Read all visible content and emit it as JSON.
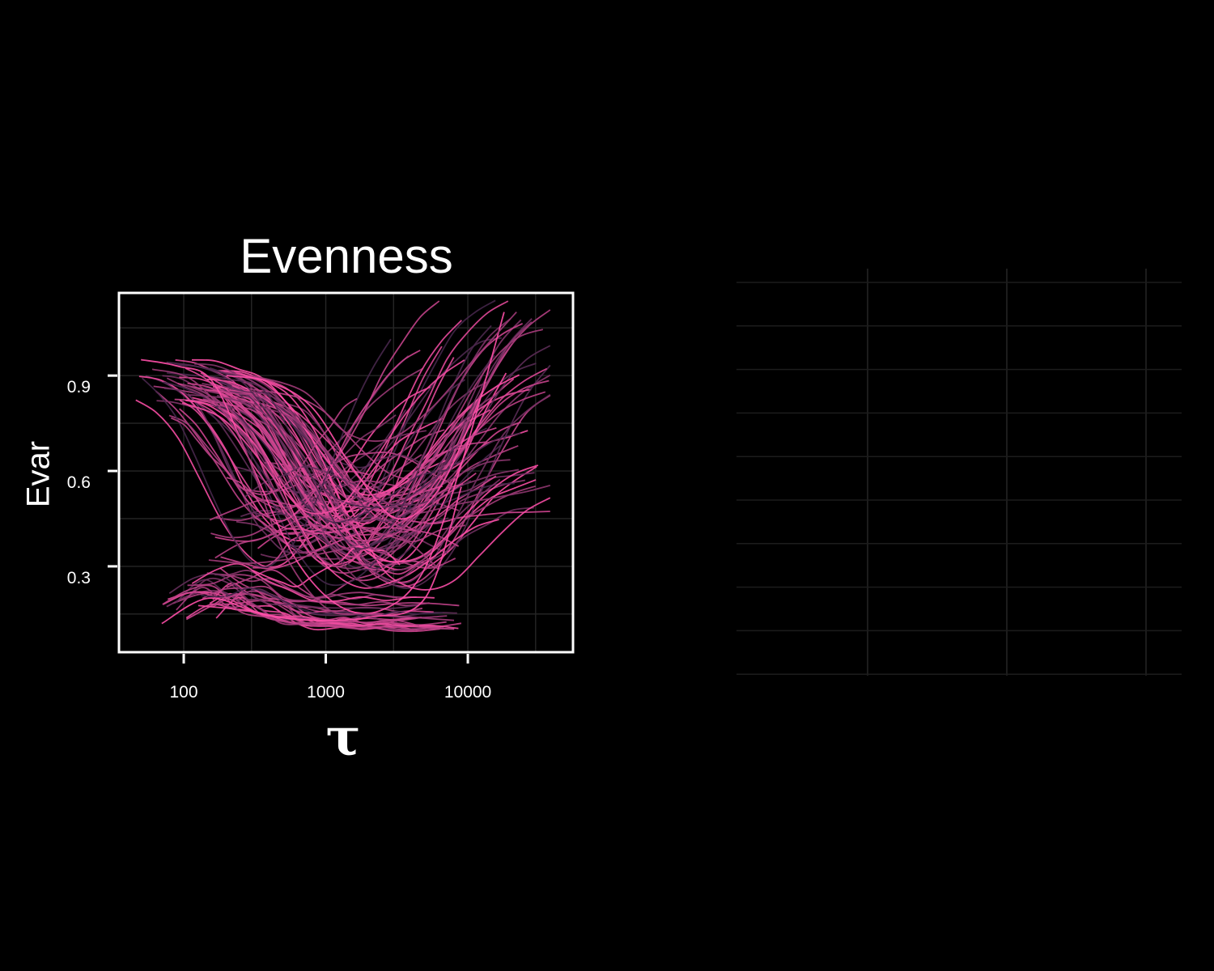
{
  "chart_data": [
    {
      "type": "line",
      "title": "Evenness",
      "xlabel": "τ",
      "ylabel": "Evar",
      "x_scale": "log",
      "xlim": [
        35,
        55000
      ],
      "ylim": [
        0.03,
        1.16
      ],
      "x_ticks": [
        100,
        1000,
        10000
      ],
      "x_tick_labels": [
        "100",
        "1000",
        "10000"
      ],
      "y_ticks": [
        0.3,
        0.6,
        0.9
      ],
      "y_tick_labels": [
        "0.3",
        "0.6",
        "0.9"
      ],
      "grid": true,
      "legend": "none",
      "colors": {
        "high": "#ff4fa8",
        "low": "#0d1a2e",
        "background": "#000000",
        "frame": "#ffffff",
        "grid": "#262626"
      },
      "series_count": 130,
      "series": [
        {
          "x": [
            50,
            90,
            160,
            300,
            600,
            1200,
            2400,
            4800,
            9000,
            18000
          ],
          "y": [
            0.95,
            0.93,
            0.88,
            0.62,
            0.33,
            0.18,
            0.16,
            0.28,
            0.62,
            1.1
          ]
        },
        {
          "x": [
            60,
            120,
            250,
            500,
            1000,
            2000,
            4000,
            8000
          ],
          "y": [
            0.92,
            0.88,
            0.7,
            0.35,
            0.17,
            0.15,
            0.14,
            0.13
          ]
        },
        {
          "x": [
            200,
            400,
            800,
            1600,
            3200,
            6400,
            12800
          ],
          "y": [
            0.9,
            0.88,
            0.8,
            0.6,
            0.45,
            0.55,
            0.85
          ]
        },
        {
          "x": [
            300,
            700,
            1400,
            2800,
            5600,
            11000,
            22000
          ],
          "y": [
            0.9,
            0.85,
            0.72,
            0.7,
            0.8,
            0.95,
            1.1
          ]
        },
        {
          "x": [
            70,
            150,
            350,
            800,
            2000,
            5000,
            9000
          ],
          "y": [
            0.12,
            0.2,
            0.15,
            0.13,
            0.14,
            0.2,
            0.55
          ]
        },
        {
          "x": [
            150,
            300,
            700,
            1500,
            3000,
            6000
          ],
          "y": [
            0.32,
            0.31,
            0.33,
            0.36,
            0.4,
            0.3
          ]
        }
      ]
    },
    {
      "type": "line",
      "title": "",
      "grid": true,
      "series": []
    }
  ]
}
